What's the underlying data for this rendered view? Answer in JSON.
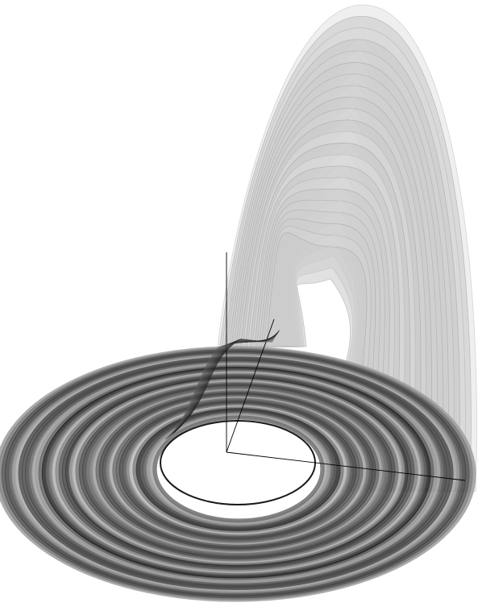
{
  "figure": {
    "subject": "rossler-attractor",
    "background_color": "#ffffff",
    "shading": {
      "band_dark": "#1a1a1a",
      "band_light": "#f2f2f2",
      "fold_light": "#d9d9d9",
      "axis_color": "#000000"
    },
    "axes": {
      "count": 3,
      "labels_shown": false
    }
  }
}
